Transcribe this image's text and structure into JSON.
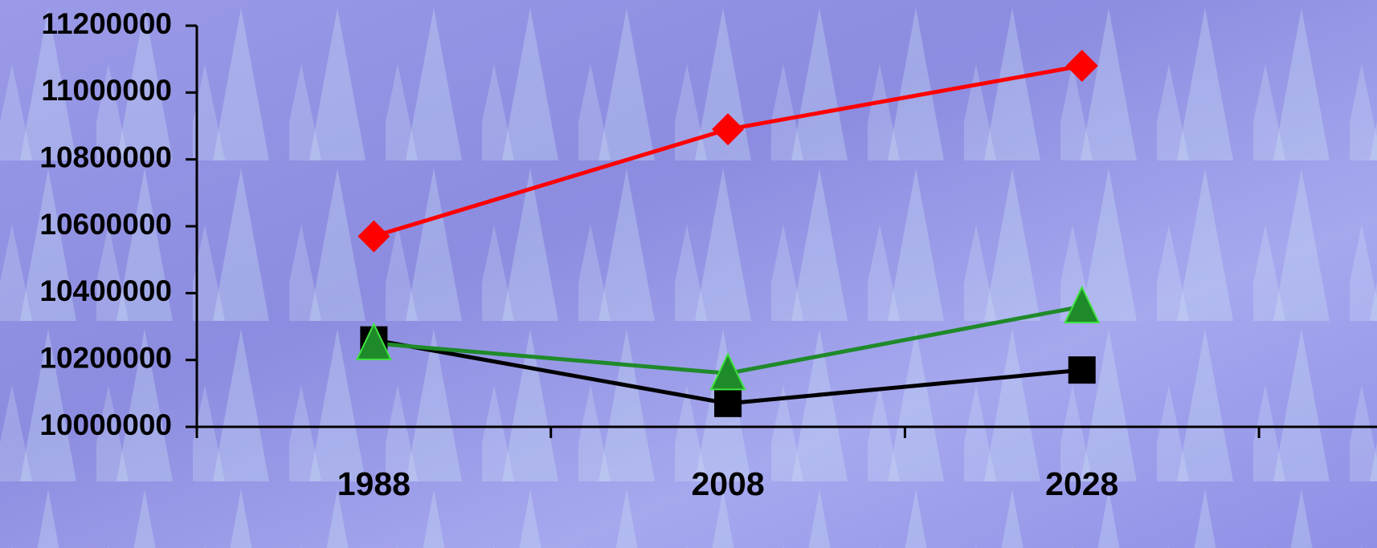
{
  "chart_data": {
    "type": "line",
    "categories": [
      "1988",
      "2008",
      "2028"
    ],
    "series": [
      {
        "color": "#ff0000",
        "marker": "diamond",
        "values": [
          10570000,
          10890000,
          11080000
        ]
      },
      {
        "color": "#000000",
        "marker": "square",
        "values": [
          10260000,
          10070000,
          10170000
        ]
      },
      {
        "color": "#1f8a2a",
        "marker": "triangle",
        "values": [
          10250000,
          10160000,
          10360000
        ]
      }
    ],
    "ylim": [
      10000000,
      11200000
    ],
    "yticks": [
      10000000,
      10200000,
      10400000,
      10600000,
      10800000,
      11000000,
      11200000
    ],
    "grid": false
  }
}
